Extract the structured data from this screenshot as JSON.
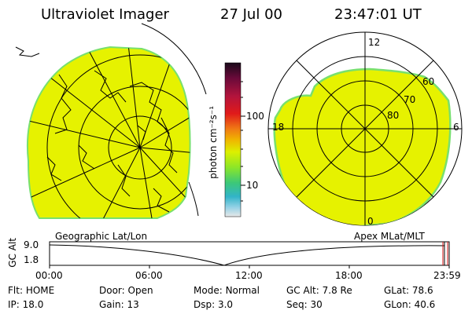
{
  "header": {
    "title": "Ultraviolet Imager",
    "date": "27 Jul 00",
    "time": "23:47:01 UT"
  },
  "colors": {
    "aurora_fill": "#e6f200",
    "edge_green": "#78e06e",
    "grid": "#000000"
  },
  "colorbar": {
    "unit_label": "photon cm⁻²s⁻¹",
    "tick_labels": [
      "100",
      "10"
    ],
    "stops": [
      "#1a0a1a",
      "#6a0a3a",
      "#b4143c",
      "#e01a1a",
      "#f07a14",
      "#f0b400",
      "#dcf000",
      "#8ce628",
      "#3cc878",
      "#32b4c8",
      "#96d2e6",
      "#e8e8e8"
    ]
  },
  "left_panel": {
    "label": "Geographic Lat/Lon"
  },
  "right_panel": {
    "label": "Apex MLat/MLT",
    "mlt_labels": [
      "12",
      "18",
      "6",
      "0"
    ],
    "lat_labels": [
      "60",
      "70",
      "80"
    ]
  },
  "altitude_plot": {
    "ylabel": "GC Alt",
    "y_ticks": [
      "9.0",
      "1.8"
    ],
    "x_ticks": [
      "00:00",
      "06:00",
      "12:00",
      "18:00",
      "23:59"
    ]
  },
  "status": {
    "row1": [
      {
        "label": "Flt:",
        "value": "HOME"
      },
      {
        "label": "Door:",
        "value": "Open"
      },
      {
        "label": "Mode:",
        "value": "Normal"
      },
      {
        "label": "GC Alt:",
        "value": "7.8 Re"
      },
      {
        "label": "GLat:",
        "value": "78.6"
      }
    ],
    "row2": [
      {
        "label": "IP:",
        "value": "18.0"
      },
      {
        "label": "Gain:",
        "value": "13"
      },
      {
        "label": "Dsp:",
        "value": "3.0"
      },
      {
        "label": "Seq:",
        "value": "30"
      },
      {
        "label": "GLon:",
        "value": "40.6"
      }
    ]
  }
}
